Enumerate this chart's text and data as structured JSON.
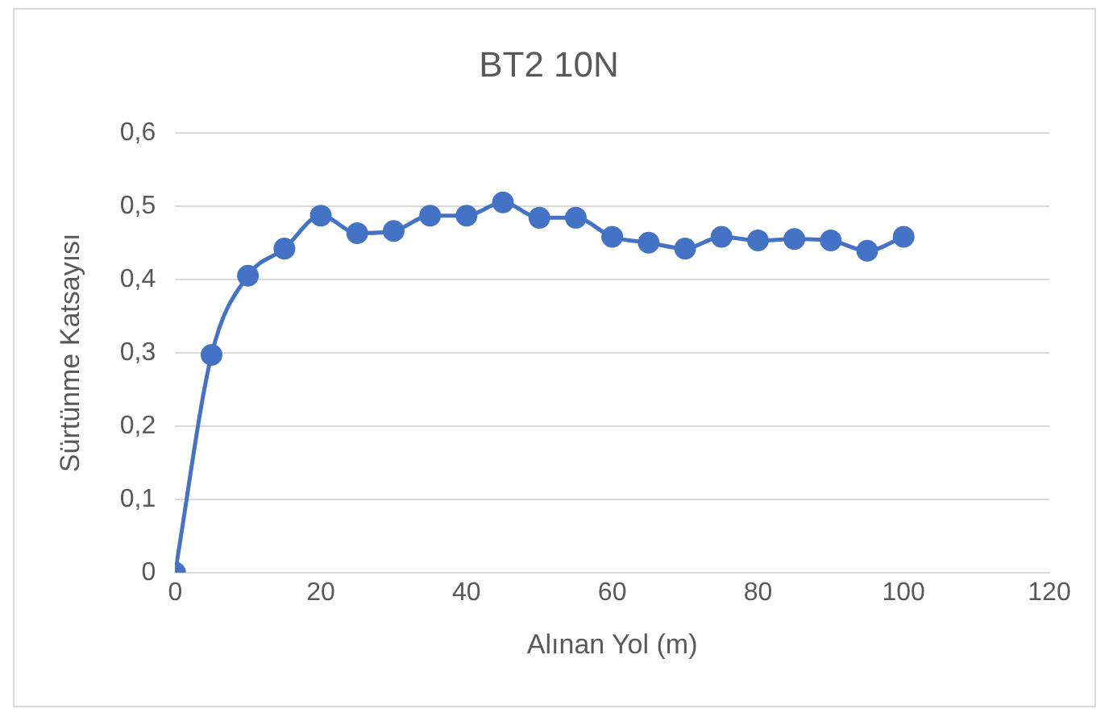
{
  "chart_data": {
    "type": "line",
    "title": "BT2 10N",
    "xlabel": "Alınan Yol (m)",
    "ylabel": "Sürtünme Katsayısı",
    "x": [
      0,
      5,
      10,
      15,
      20,
      25,
      30,
      35,
      40,
      45,
      50,
      55,
      60,
      65,
      70,
      75,
      80,
      85,
      90,
      95,
      100
    ],
    "series": [
      {
        "color": "#4472c4",
        "values": [
          0,
          0.297,
          0.405,
          0.442,
          0.487,
          0.463,
          0.466,
          0.487,
          0.487,
          0.505,
          0.484,
          0.484,
          0.458,
          0.45,
          0.442,
          0.458,
          0.453,
          0.455,
          0.453,
          0.439,
          0.458
        ]
      }
    ],
    "xlim": [
      0,
      120
    ],
    "xticks": [
      0,
      20,
      40,
      60,
      80,
      100,
      120
    ],
    "ylim": [
      0,
      0.6
    ],
    "yticks": [
      0,
      {
        "value": 0.1,
        "label": "0,1"
      },
      {
        "value": 0.2,
        "label": "0,2"
      },
      {
        "value": 0.3,
        "label": "0,3"
      },
      {
        "value": 0.4,
        "label": "0,4"
      },
      {
        "value": 0.5,
        "label": "0,5"
      },
      {
        "value": 0.6,
        "label": "0,6"
      }
    ],
    "grid": "y",
    "legend": false,
    "marker": "circle",
    "line_style": "solid"
  }
}
